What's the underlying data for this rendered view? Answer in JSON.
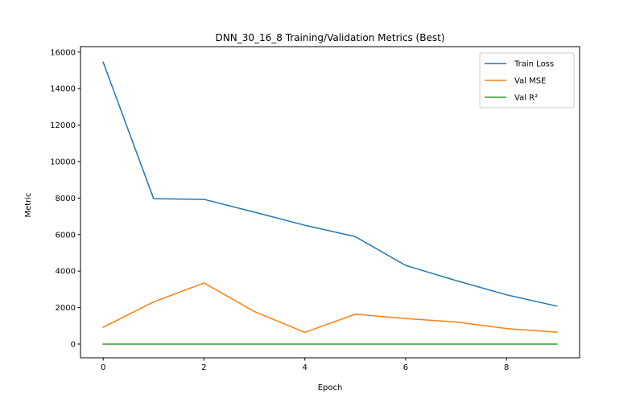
{
  "chart_data": {
    "type": "line",
    "title": "DNN_30_16_8 Training/Validation Metrics (Best)",
    "xlabel": "Epoch",
    "ylabel": "Metric",
    "x": [
      0,
      1,
      2,
      3,
      4,
      5,
      6,
      7,
      8,
      9
    ],
    "xlim": [
      -0.45,
      9.45
    ],
    "ylim": [
      -750,
      16300
    ],
    "x_ticks": [
      0,
      2,
      4,
      6,
      8
    ],
    "y_ticks": [
      0,
      2000,
      4000,
      6000,
      8000,
      10000,
      12000,
      14000,
      16000
    ],
    "grid": false,
    "legend_position": "top-right",
    "series": [
      {
        "name": "Train Loss",
        "color": "#1f77b4",
        "values": [
          15450,
          7970,
          7930,
          7230,
          6510,
          5890,
          4310,
          3480,
          2700,
          2080
        ]
      },
      {
        "name": "Val MSE",
        "color": "#ff7f0e",
        "values": [
          920,
          2310,
          3350,
          1780,
          640,
          1640,
          1400,
          1210,
          850,
          650
        ]
      },
      {
        "name": "Val R²",
        "color": "#2ca02c",
        "values": [
          0.8,
          0.5,
          0.2,
          0.6,
          0.9,
          0.7,
          0.7,
          0.8,
          0.9,
          0.9
        ]
      }
    ]
  }
}
